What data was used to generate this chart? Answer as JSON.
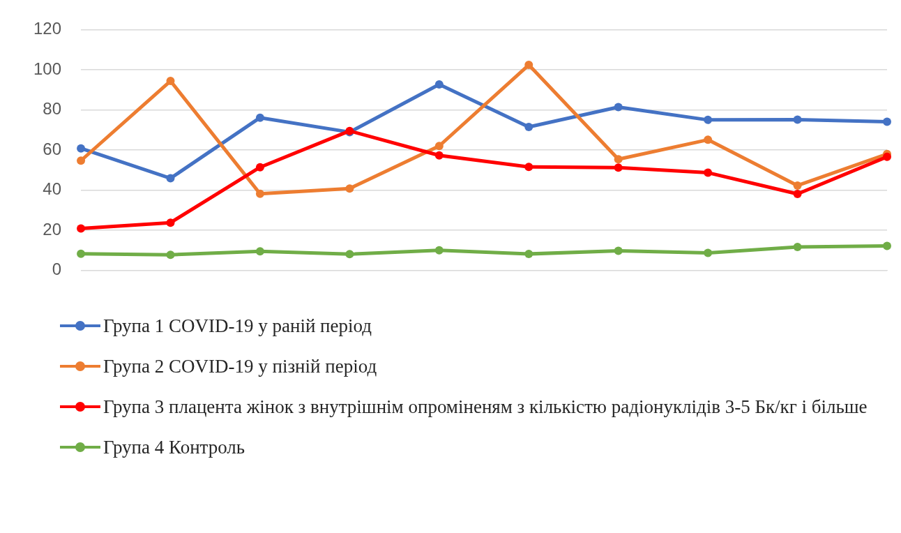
{
  "chart_data": {
    "type": "line",
    "categories": [
      null,
      null,
      null,
      null,
      null,
      null,
      null,
      null,
      null,
      null
    ],
    "series": [
      {
        "name": "Група 1 COVID-19 у раній період",
        "color": "#4472c4",
        "values": [
          60.8,
          45.9,
          76.1,
          68.9,
          92.7,
          71.5,
          81.4,
          75,
          75.1,
          74.1
        ]
      },
      {
        "name": "Група 2 COVID-19 у пізній період",
        "color": "#ed7d31",
        "values": [
          54.7,
          94.4,
          38.2,
          40.8,
          62,
          102.4,
          55.4,
          65.1,
          42.3,
          58
        ]
      },
      {
        "name": "Група 3 плацента жінок з внутрішнім опроміненям з кількістю радіонуклідів 3-5 Бк/кг і більше",
        "color": "#ff0000",
        "values": [
          20.9,
          23.8,
          51.4,
          69.5,
          57.3,
          51.6,
          51.2,
          48.7,
          38.1,
          56.6
        ]
      },
      {
        "name": "Група 4 Контроль",
        "color": "#70ad47",
        "values": [
          8.3,
          7.8,
          9.5,
          8.1,
          10,
          8.2,
          9.8,
          8.7,
          11.7,
          12.2
        ]
      }
    ],
    "ylim": [
      0,
      120
    ],
    "yticks": [
      0,
      20,
      40,
      60,
      80,
      100,
      120
    ],
    "grid": "y",
    "legend": "bottom",
    "marker": "circle",
    "line_style": "solid"
  }
}
